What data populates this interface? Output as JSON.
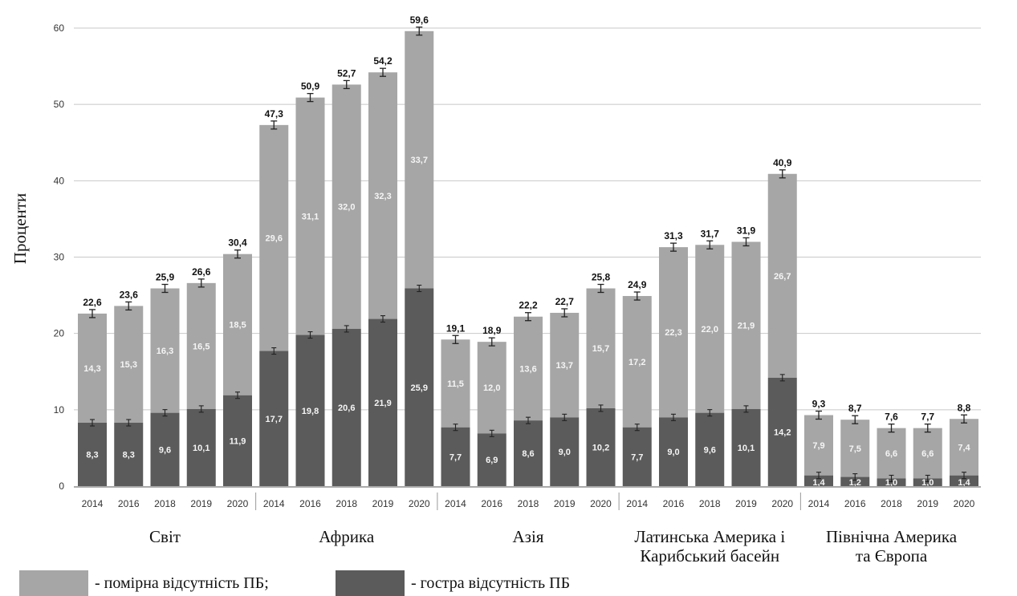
{
  "chart_data": {
    "type": "bar",
    "stacked": true,
    "ylabel": "Проценти",
    "ylim": [
      0,
      60
    ],
    "yticks": [
      "0",
      "10",
      "20",
      "30",
      "40",
      "50",
      "60"
    ],
    "grid": true,
    "legend_position": "bottom-left",
    "colors": {
      "moderate": "#a6a6a6",
      "severe": "#5b5b5b"
    },
    "legend": [
      {
        "label": "- помірна відсутність ПБ;",
        "series": "moderate"
      },
      {
        "label": "- гостра відсутність ПБ",
        "series": "severe"
      }
    ],
    "groups": [
      {
        "name_lines": [
          "Світ"
        ],
        "bars": [
          {
            "year": "2014",
            "severe": 8.3,
            "severe_label": "8,3",
            "moderate": 14.3,
            "moderate_label": "14,3",
            "total": 22.6,
            "total_label": "22,6"
          },
          {
            "year": "2016",
            "severe": 8.3,
            "severe_label": "8,3",
            "moderate": 15.3,
            "moderate_label": "15,3",
            "total": 23.6,
            "total_label": "23,6"
          },
          {
            "year": "2018",
            "severe": 9.6,
            "severe_label": "9,6",
            "moderate": 16.3,
            "moderate_label": "16,3",
            "total": 25.9,
            "total_label": "25,9"
          },
          {
            "year": "2019",
            "severe": 10.1,
            "severe_label": "10,1",
            "moderate": 16.5,
            "moderate_label": "16,5",
            "total": 26.6,
            "total_label": "26,6"
          },
          {
            "year": "2020",
            "severe": 11.9,
            "severe_label": "11,9",
            "moderate": 18.5,
            "moderate_label": "18,5",
            "total": 30.4,
            "total_label": "30,4"
          }
        ]
      },
      {
        "name_lines": [
          "Африка"
        ],
        "bars": [
          {
            "year": "2014",
            "severe": 17.7,
            "severe_label": "17,7",
            "moderate": 29.6,
            "moderate_label": "29,6",
            "total": 47.3,
            "total_label": "47,3"
          },
          {
            "year": "2016",
            "severe": 19.8,
            "severe_label": "19,8",
            "moderate": 31.1,
            "moderate_label": "31,1",
            "total": 50.9,
            "total_label": "50,9"
          },
          {
            "year": "2018",
            "severe": 20.6,
            "severe_label": "20,6",
            "moderate": 32.0,
            "moderate_label": "32,0",
            "total": 52.7,
            "total_label": "52,7"
          },
          {
            "year": "2019",
            "severe": 21.9,
            "severe_label": "21,9",
            "moderate": 32.3,
            "moderate_label": "32,3",
            "total": 54.2,
            "total_label": "54,2"
          },
          {
            "year": "2020",
            "severe": 25.9,
            "severe_label": "25,9",
            "moderate": 33.7,
            "moderate_label": "33,7",
            "total": 59.6,
            "total_label": "59,6"
          }
        ]
      },
      {
        "name_lines": [
          "Азія"
        ],
        "bars": [
          {
            "year": "2014",
            "severe": 7.7,
            "severe_label": "7,7",
            "moderate": 11.5,
            "moderate_label": "11,5",
            "total": 19.1,
            "total_label": "19,1"
          },
          {
            "year": "2016",
            "severe": 6.9,
            "severe_label": "6,9",
            "moderate": 12.0,
            "moderate_label": "12,0",
            "total": 18.9,
            "total_label": "18,9"
          },
          {
            "year": "2018",
            "severe": 8.6,
            "severe_label": "8,6",
            "moderate": 13.6,
            "moderate_label": "13,6",
            "total": 22.2,
            "total_label": "22,2"
          },
          {
            "year": "2019",
            "severe": 9.0,
            "severe_label": "9,0",
            "moderate": 13.7,
            "moderate_label": "13,7",
            "total": 22.7,
            "total_label": "22,7"
          },
          {
            "year": "2020",
            "severe": 10.2,
            "severe_label": "10,2",
            "moderate": 15.7,
            "moderate_label": "15,7",
            "total": 25.8,
            "total_label": "25,8"
          }
        ]
      },
      {
        "name_lines": [
          "Латинська Америка і",
          "Карибський басейн"
        ],
        "bars": [
          {
            "year": "2014",
            "severe": 7.7,
            "severe_label": "7,7",
            "moderate": 17.2,
            "moderate_label": "17,2",
            "total": 24.9,
            "total_label": "24,9"
          },
          {
            "year": "2016",
            "severe": 9.0,
            "severe_label": "9,0",
            "moderate": 22.3,
            "moderate_label": "22,3",
            "total": 31.3,
            "total_label": "31,3"
          },
          {
            "year": "2018",
            "severe": 9.6,
            "severe_label": "9,6",
            "moderate": 22.0,
            "moderate_label": "22,0",
            "total": 31.7,
            "total_label": "31,7"
          },
          {
            "year": "2019",
            "severe": 10.1,
            "severe_label": "10,1",
            "moderate": 21.9,
            "moderate_label": "21,9",
            "total": 31.9,
            "total_label": "31,9"
          },
          {
            "year": "2020",
            "severe": 14.2,
            "severe_label": "14,2",
            "moderate": 26.7,
            "moderate_label": "26,7",
            "total": 40.9,
            "total_label": "40,9"
          }
        ]
      },
      {
        "name_lines": [
          "Північна Америка",
          "та Європа"
        ],
        "bars": [
          {
            "year": "2014",
            "severe": 1.4,
            "severe_label": "1,4",
            "moderate": 7.9,
            "moderate_label": "7,9",
            "total": 9.3,
            "total_label": "9,3"
          },
          {
            "year": "2016",
            "severe": 1.2,
            "severe_label": "1,2",
            "moderate": 7.5,
            "moderate_label": "7,5",
            "total": 8.7,
            "total_label": "8,7"
          },
          {
            "year": "2018",
            "severe": 1.0,
            "severe_label": "1,0",
            "moderate": 6.6,
            "moderate_label": "6,6",
            "total": 7.6,
            "total_label": "7,6"
          },
          {
            "year": "2019",
            "severe": 1.0,
            "severe_label": "1,0",
            "moderate": 6.6,
            "moderate_label": "6,6",
            "total": 7.7,
            "total_label": "7,7"
          },
          {
            "year": "2020",
            "severe": 1.4,
            "severe_label": "1,4",
            "moderate": 7.4,
            "moderate_label": "7,4",
            "total": 8.8,
            "total_label": "8,8"
          }
        ]
      }
    ]
  }
}
